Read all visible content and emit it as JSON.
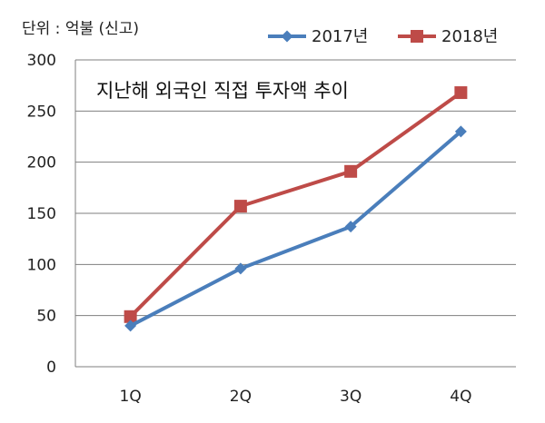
{
  "chart_data": {
    "type": "line",
    "title": "지난해 외국인 직접 투자액 추이",
    "unit_label": "단위 : 억불 (신고)",
    "categories": [
      "1Q",
      "2Q",
      "3Q",
      "4Q"
    ],
    "ylim": [
      0,
      300
    ],
    "yticks": [
      0,
      50,
      100,
      150,
      200,
      250,
      300
    ],
    "grid": true,
    "legend_position": "top-right",
    "series": [
      {
        "name": "2017년",
        "values": [
          40,
          96,
          137,
          230
        ],
        "color": "#4a7ebb",
        "marker": "diamond"
      },
      {
        "name": "2018년",
        "values": [
          49,
          157,
          191,
          268
        ],
        "color": "#be4b48",
        "marker": "square"
      }
    ]
  }
}
